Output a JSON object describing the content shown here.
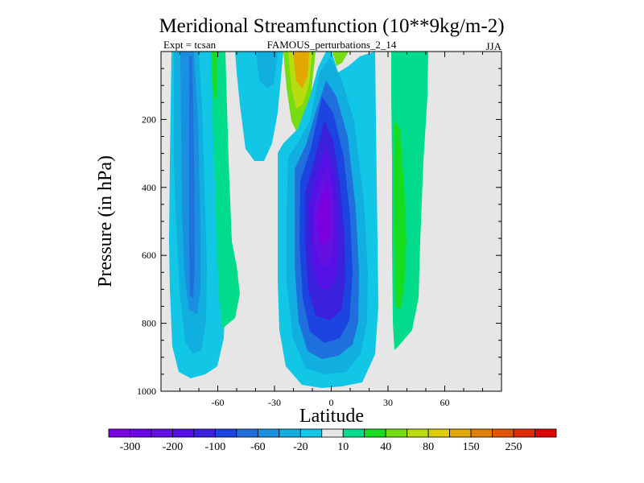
{
  "chart_data": {
    "type": "contour",
    "title": "Meridional Streamfunction (10**9kg/m-2)",
    "subtitle_left": "Expt = tcsan",
    "subtitle_center": "FAMOUS_perturbations_2_14",
    "subtitle_right": "JJA",
    "xlabel": "Latitude",
    "ylabel": "Pressure (in hPa)",
    "xlim": [
      -90,
      90
    ],
    "ylim": [
      0,
      1000
    ],
    "y_inverted": true,
    "x_ticks": [
      -60,
      -30,
      0,
      30,
      60
    ],
    "x_tick_labels": [
      "-60",
      "-30",
      "0",
      "30",
      "60"
    ],
    "y_ticks": [
      200,
      400,
      600,
      800,
      1000
    ],
    "y_tick_labels": [
      "200",
      "400",
      "600",
      "800",
      "1000"
    ],
    "background_color": "#e6e6e6",
    "colorbar": {
      "colors": [
        "#7a00e0",
        "#6e00e6",
        "#6410e0",
        "#5510e6",
        "#3a22dc",
        "#1c44e0",
        "#1f6fdc",
        "#1a8fe0",
        "#11aee0",
        "#12c6e6",
        "#e6e6e6",
        "#00dc8c",
        "#18dc20",
        "#74dc10",
        "#b8dc10",
        "#dccc00",
        "#e0a800",
        "#e08000",
        "#e05600",
        "#e02c00",
        "#e00000"
      ],
      "tick_labels": [
        "-300",
        "-200",
        "-100",
        "-60",
        "-20",
        "10",
        "40",
        "80",
        "150",
        "250"
      ],
      "tick_boundaries": [
        1,
        3,
        5,
        7,
        9,
        11,
        13,
        15,
        17,
        19
      ]
    },
    "features": [
      {
        "name": "southern-cell-outer",
        "value": -10,
        "color": "#12c6e6",
        "extent": "lat -85 to -63, 40-965 hPa"
      },
      {
        "name": "southern-cell-core",
        "value": -20,
        "color": "#11aee0",
        "extent": "lat -84 to -70, 200-820 hPa"
      },
      {
        "name": "southern-cell-inner",
        "value": -40,
        "color": "#1a8fe0",
        "extent": "lat -80 to -72, 350-760 hPa"
      },
      {
        "name": "southern-cell-center",
        "value": -60,
        "color": "#1f6fdc",
        "extent": "lat -75 to -73, 540-720 hPa"
      },
      {
        "name": "positive-band-sh",
        "value": 15,
        "color": "#00dc8c",
        "extent": "lat -66 to -51, 40-810 hPa"
      },
      {
        "name": "upper-negative-lobe",
        "value": -10,
        "color": "#12c6e6",
        "extent": "lat -44 to -20, 40-315 hPa"
      },
      {
        "name": "upper-positive-tongue",
        "value": 80,
        "color": "#e0a800",
        "extent": "lat -23 to -10, 40-270 hPa"
      },
      {
        "name": "hadley-cell-outer",
        "value": -10,
        "color": "#12c6e6",
        "extent": "lat -28 to 21, 40-985 hPa"
      },
      {
        "name": "hadley-cell-core",
        "value": -300,
        "color": "#7a00e0",
        "extent": "lat -12 to 2, 200-640 hPa"
      },
      {
        "name": "positive-band-nh",
        "value": 15,
        "color": "#00dc8c",
        "extent": "lat 30 to 52, 40-880 hPa"
      }
    ]
  }
}
